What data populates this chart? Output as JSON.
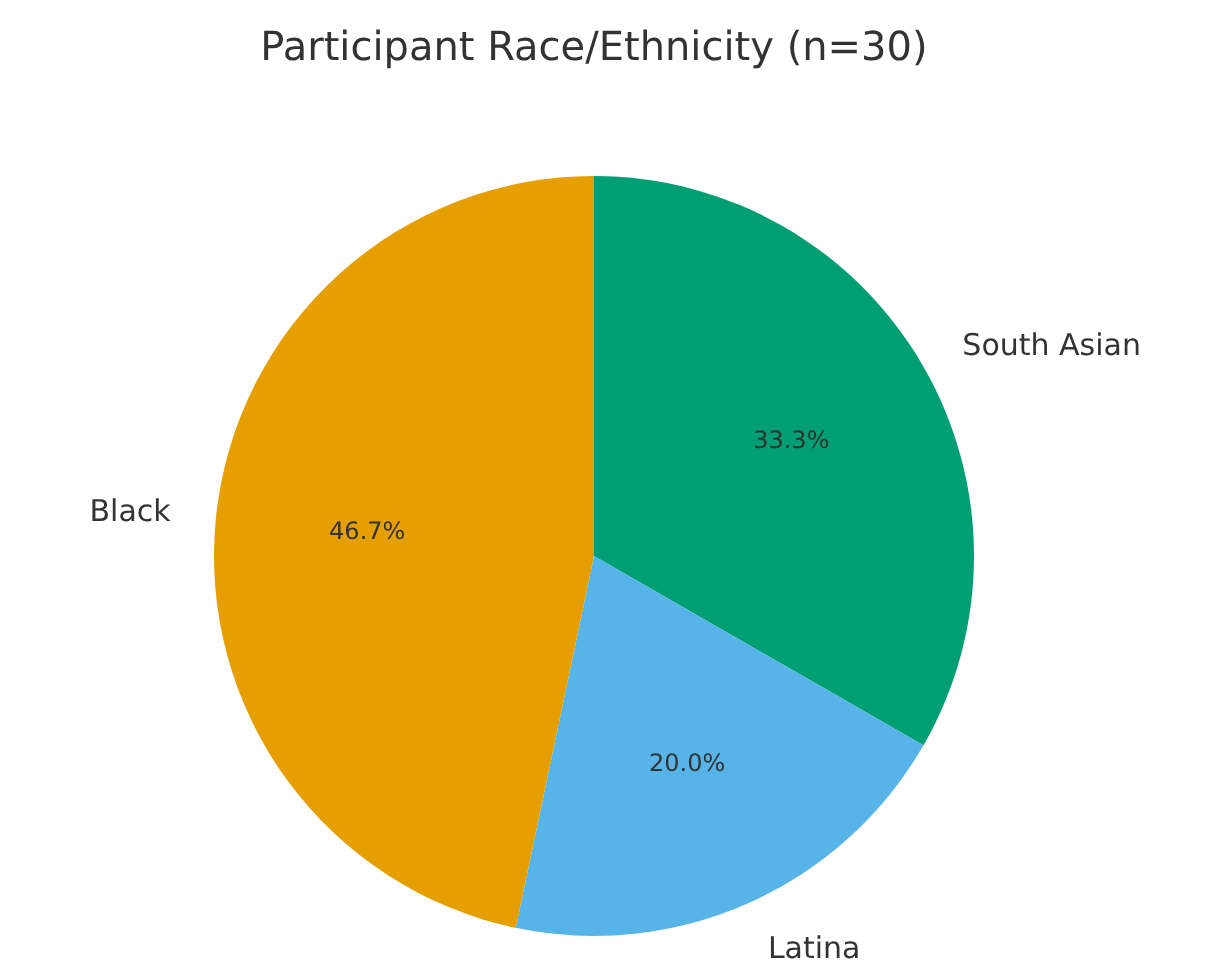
{
  "chart_data": {
    "type": "pie",
    "title": "Participant Race/Ethnicity (n=30)",
    "categories": [
      "South Asian",
      "Latina",
      "Black"
    ],
    "values": [
      33.3,
      20.0,
      46.7
    ],
    "colors": [
      "#009e73",
      "#56b4e9",
      "#e69f00"
    ],
    "value_labels": [
      "33.3%",
      "20.0%",
      "46.7%"
    ]
  }
}
